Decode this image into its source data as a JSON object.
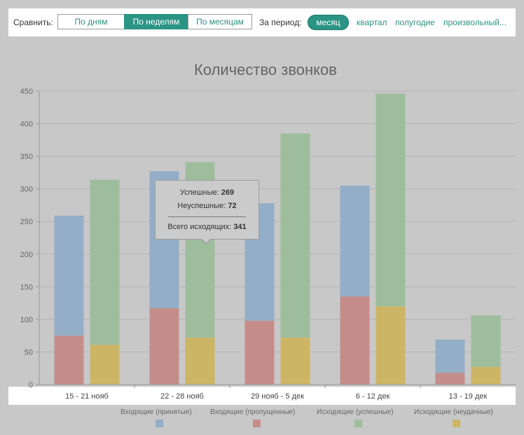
{
  "toolbar": {
    "compare_label": "Сравнить:",
    "segments": [
      {
        "label": "По дням",
        "active": false
      },
      {
        "label": "По неделям",
        "active": true
      },
      {
        "label": "По месяцам",
        "active": false
      }
    ],
    "period_label": "За период:",
    "period_active": "месяц",
    "period_links": [
      "квартал",
      "полугодие",
      "произвольный..."
    ]
  },
  "colors": {
    "incoming_accepted": "#93aec6",
    "incoming_missed": "#c58d8a",
    "outgoing_success": "#9ebd9c",
    "outgoing_failed": "#cdb566",
    "accent": "#2b9484"
  },
  "tooltip": {
    "success_label": "Успешные:",
    "success_value": "269",
    "fail_label": "Неуспешные:",
    "fail_value": "72",
    "total_label": "Всего исходящих:",
    "total_value": "341"
  },
  "chart_data": {
    "type": "bar",
    "title": "Количество звонков",
    "categories": [
      "15 - 21 нояб",
      "22 - 28 нояб",
      "29 нояб - 5 дек",
      "6 - 12 дек",
      "13 - 19 дек"
    ],
    "ylim": [
      0,
      450
    ],
    "yticks": [
      0,
      50,
      100,
      150,
      200,
      250,
      300,
      350,
      400,
      450
    ],
    "grid": true,
    "legend_position": "bottom",
    "stacks": [
      {
        "id": "incoming",
        "series": [
          {
            "name": "Входящие (пропущенные)",
            "color": "#c58d8a",
            "values": [
              75,
              117,
              98,
              135,
              18
            ]
          },
          {
            "name": "Входящие (принятые)",
            "color": "#93aec6",
            "values": [
              184,
              210,
              180,
              170,
              51
            ]
          }
        ]
      },
      {
        "id": "outgoing",
        "series": [
          {
            "name": "Исходящие (неудачные)",
            "color": "#cdb566",
            "values": [
              61,
              72,
              72,
              120,
              27
            ]
          },
          {
            "name": "Исходящие (успешные)",
            "color": "#9ebd9c",
            "values": [
              253,
              269,
              313,
              326,
              79
            ]
          }
        ]
      }
    ],
    "legend": [
      {
        "label": "Входящие (принятые)",
        "color": "#93aec6"
      },
      {
        "label": "Входящие (пропущенные)",
        "color": "#c58d8a"
      },
      {
        "label": "Исходящие (успешные)",
        "color": "#9ebd9c"
      },
      {
        "label": "Исходящие (неудачные)",
        "color": "#cdb566"
      }
    ]
  }
}
